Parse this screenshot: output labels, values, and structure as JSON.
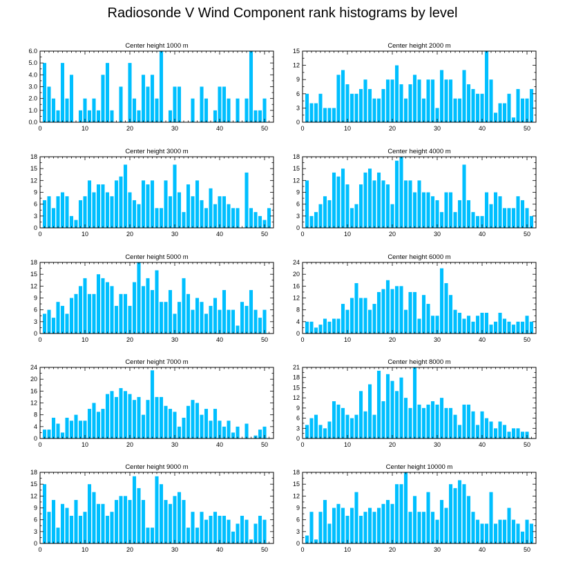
{
  "title": "Radiosonde V Wind Component rank histograms by level",
  "colors": {
    "bar": "#00BFFF",
    "axis": "#000000"
  },
  "chart_data": [
    {
      "type": "bar",
      "title": "Center height 1000 m",
      "x_start": 1,
      "xlim": [
        0,
        52
      ],
      "xticks": [
        0,
        10,
        20,
        30,
        40,
        50
      ],
      "ylim": [
        0,
        6
      ],
      "yticks": [
        "0.0",
        "1.0",
        "2.0",
        "3.0",
        "4.0",
        "5.0",
        "6.0"
      ],
      "values": [
        5,
        3,
        2,
        1,
        5,
        2,
        4,
        0,
        1,
        2,
        1,
        2,
        1,
        4,
        5,
        1,
        0,
        3,
        0,
        5,
        2,
        1,
        4,
        3,
        4,
        2,
        6,
        0,
        1,
        3,
        3,
        0,
        0,
        2,
        0,
        3,
        2,
        0,
        1,
        3,
        3,
        2,
        0,
        2,
        0,
        2,
        6,
        1,
        1,
        2,
        0
      ]
    },
    {
      "type": "bar",
      "title": "Center height 2000 m",
      "x_start": 1,
      "xlim": [
        0,
        52
      ],
      "xticks": [
        0,
        10,
        20,
        30,
        40,
        50
      ],
      "ylim": [
        0,
        15
      ],
      "yticks": [
        "0",
        "3",
        "6",
        "9",
        "12",
        "15"
      ],
      "values": [
        6,
        4,
        4,
        6,
        3,
        3,
        3,
        10,
        11,
        8,
        6,
        6,
        7,
        9,
        7,
        5,
        5,
        7,
        9,
        9,
        12,
        8,
        5,
        8,
        10,
        9,
        5,
        9,
        9,
        3,
        11,
        9,
        9,
        5,
        5,
        11,
        8,
        7,
        6,
        6,
        15,
        9,
        2,
        4,
        4,
        6,
        1,
        7,
        5,
        5,
        7
      ]
    },
    {
      "type": "bar",
      "title": "Center height 3000 m",
      "x_start": 1,
      "xlim": [
        0,
        52
      ],
      "xticks": [
        0,
        10,
        20,
        30,
        40,
        50
      ],
      "ylim": [
        0,
        18
      ],
      "yticks": [
        "0",
        "3",
        "6",
        "9",
        "12",
        "15",
        "18"
      ],
      "values": [
        7,
        8,
        5,
        8,
        9,
        8,
        3,
        2,
        7,
        8,
        12,
        9,
        11,
        11,
        9,
        8,
        12,
        13,
        16,
        9,
        7,
        6,
        12,
        11,
        12,
        5,
        5,
        12,
        8,
        16,
        9,
        4,
        11,
        8,
        12,
        7,
        5,
        10,
        6,
        8,
        8,
        6,
        5,
        5,
        0,
        14,
        5,
        4,
        3,
        2,
        5
      ]
    },
    {
      "type": "bar",
      "title": "Center height 4000 m",
      "x_start": 1,
      "xlim": [
        0,
        52
      ],
      "xticks": [
        0,
        10,
        20,
        30,
        40,
        50
      ],
      "ylim": [
        0,
        18
      ],
      "yticks": [
        "0",
        "3",
        "6",
        "9",
        "12",
        "15",
        "18"
      ],
      "values": [
        12,
        3,
        4,
        6,
        8,
        7,
        14,
        13,
        15,
        11,
        5,
        6,
        11,
        14,
        15,
        12,
        14,
        12,
        11,
        6,
        17,
        18,
        12,
        12,
        9,
        12,
        9,
        9,
        8,
        7,
        4,
        9,
        9,
        4,
        7,
        16,
        7,
        4,
        3,
        3,
        9,
        6,
        9,
        8,
        5,
        5,
        5,
        8,
        7,
        5,
        3
      ]
    },
    {
      "type": "bar",
      "title": "Center height 5000 m",
      "x_start": 1,
      "xlim": [
        0,
        52
      ],
      "xticks": [
        0,
        10,
        20,
        30,
        40,
        50
      ],
      "ylim": [
        0,
        18
      ],
      "yticks": [
        "0",
        "3",
        "6",
        "9",
        "12",
        "15",
        "18"
      ],
      "values": [
        5,
        6,
        4,
        8,
        7,
        5,
        9,
        10,
        12,
        14,
        10,
        10,
        15,
        14,
        13,
        12,
        7,
        10,
        10,
        7,
        13,
        18,
        12,
        14,
        11,
        16,
        8,
        8,
        11,
        5,
        8,
        14,
        10,
        6,
        9,
        8,
        5,
        7,
        9,
        6,
        11,
        6,
        6,
        2,
        8,
        7,
        11,
        6,
        4,
        6,
        0
      ]
    },
    {
      "type": "bar",
      "title": "Center height 6000 m",
      "x_start": 1,
      "xlim": [
        0,
        52
      ],
      "xticks": [
        0,
        10,
        20,
        30,
        40,
        50
      ],
      "ylim": [
        0,
        24
      ],
      "yticks": [
        "0",
        "4",
        "8",
        "12",
        "16",
        "20",
        "24"
      ],
      "values": [
        4,
        4,
        2,
        3,
        5,
        4,
        5,
        5,
        10,
        8,
        12,
        17,
        12,
        12,
        8,
        10,
        14,
        15,
        18,
        15,
        16,
        16,
        8,
        14,
        14,
        5,
        13,
        10,
        6,
        6,
        22,
        17,
        13,
        8,
        7,
        5,
        6,
        4,
        6,
        7,
        7,
        3,
        4,
        7,
        5,
        4,
        3,
        4,
        4,
        6,
        4
      ]
    },
    {
      "type": "bar",
      "title": "Center height 7000 m",
      "x_start": 1,
      "xlim": [
        0,
        52
      ],
      "xticks": [
        0,
        10,
        20,
        30,
        40,
        50
      ],
      "ylim": [
        0,
        24
      ],
      "yticks": [
        "0",
        "4",
        "8",
        "12",
        "16",
        "20",
        "24"
      ],
      "values": [
        3,
        3,
        7,
        5,
        2,
        7,
        6,
        8,
        6,
        6,
        10,
        12,
        9,
        10,
        15,
        16,
        14,
        17,
        16,
        15,
        13,
        14,
        8,
        13,
        23,
        14,
        14,
        11,
        10,
        9,
        4,
        7,
        11,
        13,
        12,
        8,
        10,
        6,
        10,
        6,
        4,
        6,
        2,
        4,
        0,
        5,
        0,
        1,
        3,
        4,
        0
      ]
    },
    {
      "type": "bar",
      "title": "Center height 8000 m",
      "x_start": 1,
      "xlim": [
        0,
        52
      ],
      "xticks": [
        0,
        10,
        20,
        30,
        40,
        50
      ],
      "ylim": [
        0,
        21
      ],
      "yticks": [
        "0",
        "3",
        "6",
        "9",
        "12",
        "15",
        "18",
        "21"
      ],
      "values": [
        4,
        6,
        7,
        4,
        3,
        5,
        11,
        10,
        9,
        7,
        6,
        7,
        14,
        8,
        16,
        7,
        20,
        11,
        19,
        17,
        14,
        18,
        12,
        9,
        21,
        10,
        9,
        10,
        11,
        10,
        12,
        9,
        9,
        7,
        4,
        10,
        10,
        8,
        4,
        8,
        6,
        5,
        3,
        5,
        4,
        2,
        3,
        3,
        2,
        2,
        0
      ]
    },
    {
      "type": "bar",
      "title": "Center height 9000 m",
      "x_start": 1,
      "xlim": [
        0,
        52
      ],
      "xticks": [
        0,
        10,
        20,
        30,
        40,
        50
      ],
      "ylim": [
        0,
        18
      ],
      "yticks": [
        "0",
        "3",
        "6",
        "9",
        "12",
        "15",
        "18"
      ],
      "values": [
        15,
        8,
        11,
        4,
        10,
        9,
        7,
        11,
        7,
        8,
        15,
        13,
        10,
        10,
        7,
        8,
        11,
        12,
        12,
        11,
        17,
        14,
        11,
        4,
        4,
        17,
        15,
        11,
        10,
        12,
        13,
        11,
        4,
        8,
        4,
        8,
        6,
        7,
        8,
        7,
        7,
        6,
        3,
        5,
        7,
        6,
        1,
        5,
        7,
        6,
        0
      ]
    },
    {
      "type": "bar",
      "title": "Center height 10000 m",
      "x_start": 1,
      "xlim": [
        0,
        52
      ],
      "xticks": [
        0,
        10,
        20,
        30,
        40,
        50
      ],
      "ylim": [
        0,
        18
      ],
      "yticks": [
        "0",
        "3",
        "6",
        "9",
        "12",
        "15",
        "18"
      ],
      "values": [
        2,
        8,
        1,
        8,
        11,
        5,
        9,
        10,
        9,
        7,
        9,
        13,
        7,
        8,
        9,
        8,
        9,
        10,
        11,
        10,
        15,
        15,
        18,
        8,
        12,
        8,
        8,
        13,
        8,
        6,
        11,
        9,
        15,
        14,
        16,
        15,
        12,
        8,
        6,
        5,
        5,
        13,
        5,
        6,
        6,
        9,
        6,
        5,
        3,
        6,
        5
      ]
    }
  ]
}
